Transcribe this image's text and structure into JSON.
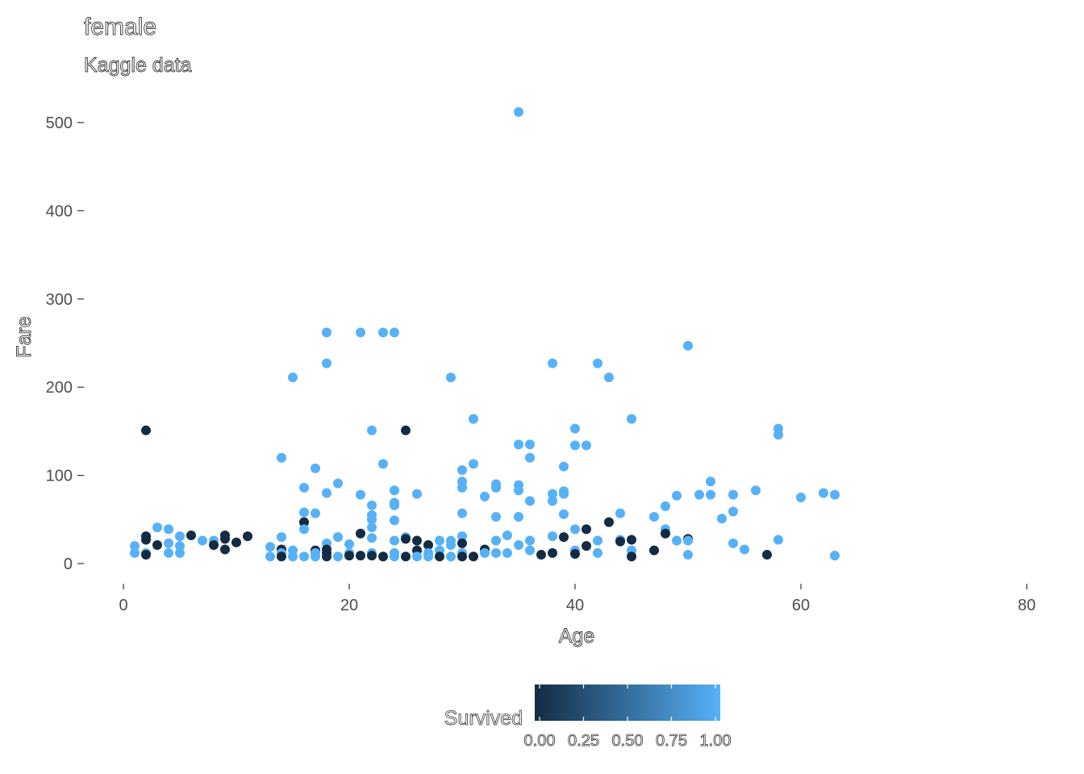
{
  "chart_data": {
    "type": "scatter",
    "title": "female",
    "subtitle": "Kaggle data",
    "xlabel": "Age",
    "ylabel": "Fare",
    "xlim": [
      0,
      80
    ],
    "ylim": [
      0,
      520
    ],
    "x_ticks": [
      "0",
      "20",
      "40",
      "60",
      "80"
    ],
    "x_tick_values": [
      0,
      20,
      40,
      60,
      80
    ],
    "y_ticks": [
      "0",
      "100",
      "200",
      "300",
      "400",
      "500"
    ],
    "y_tick_values": [
      0,
      100,
      200,
      300,
      400,
      500
    ],
    "grid": false,
    "legend": {
      "title": "Survived",
      "position": "bottom",
      "ticks": [
        "0.00",
        "0.25",
        "0.50",
        "0.75",
        "1.00"
      ],
      "tick_values": [
        0,
        0.25,
        0.5,
        0.75,
        1
      ],
      "color_low": "#132B43",
      "color_high": "#56B1F7"
    },
    "color_survived": "#56B1F7",
    "color_died": "#132B43",
    "points": [
      {
        "x": 35,
        "y": 512,
        "s": 1
      },
      {
        "x": 18,
        "y": 262,
        "s": 1
      },
      {
        "x": 21,
        "y": 262,
        "s": 1
      },
      {
        "x": 23,
        "y": 262,
        "s": 1
      },
      {
        "x": 24,
        "y": 262,
        "s": 1
      },
      {
        "x": 50,
        "y": 247,
        "s": 1
      },
      {
        "x": 18,
        "y": 227,
        "s": 1
      },
      {
        "x": 38,
        "y": 227,
        "s": 1
      },
      {
        "x": 42,
        "y": 227,
        "s": 1
      },
      {
        "x": 15,
        "y": 211,
        "s": 1
      },
      {
        "x": 29,
        "y": 211,
        "s": 1
      },
      {
        "x": 43,
        "y": 211,
        "s": 1
      },
      {
        "x": 31,
        "y": 164,
        "s": 1
      },
      {
        "x": 45,
        "y": 164,
        "s": 1
      },
      {
        "x": 2,
        "y": 151,
        "s": 0
      },
      {
        "x": 22,
        "y": 151,
        "s": 1
      },
      {
        "x": 25,
        "y": 151,
        "s": 0
      },
      {
        "x": 40,
        "y": 153,
        "s": 1
      },
      {
        "x": 58,
        "y": 153,
        "s": 1
      },
      {
        "x": 58,
        "y": 146,
        "s": 1
      },
      {
        "x": 35,
        "y": 135,
        "s": 1
      },
      {
        "x": 36,
        "y": 135,
        "s": 1
      },
      {
        "x": 40,
        "y": 134,
        "s": 1
      },
      {
        "x": 41,
        "y": 134,
        "s": 1
      },
      {
        "x": 14,
        "y": 120,
        "s": 1
      },
      {
        "x": 36,
        "y": 120,
        "s": 1
      },
      {
        "x": 23,
        "y": 113,
        "s": 1
      },
      {
        "x": 31,
        "y": 113,
        "s": 1
      },
      {
        "x": 17,
        "y": 108,
        "s": 1
      },
      {
        "x": 30,
        "y": 106,
        "s": 1
      },
      {
        "x": 39,
        "y": 110,
        "s": 1
      },
      {
        "x": 30,
        "y": 93,
        "s": 1
      },
      {
        "x": 52,
        "y": 93,
        "s": 1
      },
      {
        "x": 19,
        "y": 91,
        "s": 1
      },
      {
        "x": 33,
        "y": 90,
        "s": 1
      },
      {
        "x": 35,
        "y": 89,
        "s": 1
      },
      {
        "x": 16,
        "y": 86,
        "s": 1
      },
      {
        "x": 30,
        "y": 86,
        "s": 1
      },
      {
        "x": 33,
        "y": 86,
        "s": 1
      },
      {
        "x": 35,
        "y": 83,
        "s": 1
      },
      {
        "x": 24,
        "y": 83,
        "s": 1
      },
      {
        "x": 39,
        "y": 82,
        "s": 1
      },
      {
        "x": 56,
        "y": 83,
        "s": 1
      },
      {
        "x": 18,
        "y": 80,
        "s": 1
      },
      {
        "x": 26,
        "y": 79,
        "s": 1
      },
      {
        "x": 38,
        "y": 79,
        "s": 1
      },
      {
        "x": 39,
        "y": 79,
        "s": 1
      },
      {
        "x": 62,
        "y": 80,
        "s": 1
      },
      {
        "x": 63,
        "y": 78,
        "s": 1
      },
      {
        "x": 21,
        "y": 78,
        "s": 1
      },
      {
        "x": 49,
        "y": 77,
        "s": 1
      },
      {
        "x": 51,
        "y": 78,
        "s": 1
      },
      {
        "x": 52,
        "y": 78,
        "s": 1
      },
      {
        "x": 54,
        "y": 78,
        "s": 1
      },
      {
        "x": 32,
        "y": 76,
        "s": 1
      },
      {
        "x": 60,
        "y": 75,
        "s": 1
      },
      {
        "x": 38,
        "y": 71,
        "s": 1
      },
      {
        "x": 24,
        "y": 69,
        "s": 1
      },
      {
        "x": 36,
        "y": 71,
        "s": 1
      },
      {
        "x": 22,
        "y": 66,
        "s": 1
      },
      {
        "x": 24,
        "y": 66,
        "s": 1
      },
      {
        "x": 48,
        "y": 65,
        "s": 1
      },
      {
        "x": 54,
        "y": 59,
        "s": 1
      },
      {
        "x": 16,
        "y": 58,
        "s": 1
      },
      {
        "x": 17,
        "y": 57,
        "s": 1
      },
      {
        "x": 30,
        "y": 57,
        "s": 1
      },
      {
        "x": 39,
        "y": 56,
        "s": 1
      },
      {
        "x": 44,
        "y": 57,
        "s": 1
      },
      {
        "x": 22,
        "y": 55,
        "s": 1
      },
      {
        "x": 33,
        "y": 53,
        "s": 1
      },
      {
        "x": 35,
        "y": 53,
        "s": 1
      },
      {
        "x": 47,
        "y": 53,
        "s": 1
      },
      {
        "x": 53,
        "y": 51,
        "s": 1
      },
      {
        "x": 22,
        "y": 50,
        "s": 1
      },
      {
        "x": 24,
        "y": 49,
        "s": 1
      },
      {
        "x": 16,
        "y": 47,
        "s": 0
      },
      {
        "x": 43,
        "y": 47,
        "s": 0
      },
      {
        "x": 3,
        "y": 41,
        "s": 1
      },
      {
        "x": 22,
        "y": 41,
        "s": 1
      },
      {
        "x": 4,
        "y": 39,
        "s": 1
      },
      {
        "x": 16,
        "y": 39,
        "s": 1
      },
      {
        "x": 40,
        "y": 39,
        "s": 1
      },
      {
        "x": 41,
        "y": 39,
        "s": 0
      },
      {
        "x": 48,
        "y": 39,
        "s": 1
      },
      {
        "x": 48,
        "y": 34,
        "s": 0
      },
      {
        "x": 21,
        "y": 34,
        "s": 0
      },
      {
        "x": 34,
        "y": 32,
        "s": 1
      },
      {
        "x": 6,
        "y": 32,
        "s": 0
      },
      {
        "x": 9,
        "y": 32,
        "s": 0
      },
      {
        "x": 11,
        "y": 31,
        "s": 0
      },
      {
        "x": 2,
        "y": 31,
        "s": 0
      },
      {
        "x": 5,
        "y": 31,
        "s": 1
      },
      {
        "x": 14,
        "y": 30,
        "s": 1
      },
      {
        "x": 19,
        "y": 30,
        "s": 1
      },
      {
        "x": 25,
        "y": 30,
        "s": 1
      },
      {
        "x": 30,
        "y": 31,
        "s": 1
      },
      {
        "x": 38,
        "y": 31,
        "s": 1
      },
      {
        "x": 39,
        "y": 30,
        "s": 0
      },
      {
        "x": 22,
        "y": 29,
        "s": 1
      },
      {
        "x": 25,
        "y": 28,
        "s": 0
      },
      {
        "x": 50,
        "y": 28,
        "s": 0
      },
      {
        "x": 9,
        "y": 28,
        "s": 0
      },
      {
        "x": 44,
        "y": 27,
        "s": 1
      },
      {
        "x": 45,
        "y": 27,
        "s": 0
      },
      {
        "x": 2,
        "y": 27,
        "s": 0
      },
      {
        "x": 7,
        "y": 26,
        "s": 1
      },
      {
        "x": 8,
        "y": 26,
        "s": 1
      },
      {
        "x": 13,
        "y": 19,
        "s": 1
      },
      {
        "x": 24,
        "y": 26,
        "s": 1
      },
      {
        "x": 26,
        "y": 26,
        "s": 0
      },
      {
        "x": 28,
        "y": 26,
        "s": 1
      },
      {
        "x": 29,
        "y": 26,
        "s": 1
      },
      {
        "x": 33,
        "y": 26,
        "s": 1
      },
      {
        "x": 36,
        "y": 26,
        "s": 1
      },
      {
        "x": 42,
        "y": 26,
        "s": 1
      },
      {
        "x": 49,
        "y": 26,
        "s": 1
      },
      {
        "x": 50,
        "y": 26,
        "s": 1
      },
      {
        "x": 58,
        "y": 27,
        "s": 1
      },
      {
        "x": 44,
        "y": 25,
        "s": 0
      },
      {
        "x": 10,
        "y": 24,
        "s": 0
      },
      {
        "x": 4,
        "y": 23,
        "s": 1
      },
      {
        "x": 18,
        "y": 23,
        "s": 1
      },
      {
        "x": 20,
        "y": 22,
        "s": 1
      },
      {
        "x": 30,
        "y": 23,
        "s": 0
      },
      {
        "x": 54,
        "y": 23,
        "s": 1
      },
      {
        "x": 3,
        "y": 21,
        "s": 0
      },
      {
        "x": 8,
        "y": 21,
        "s": 0
      },
      {
        "x": 27,
        "y": 21,
        "s": 0
      },
      {
        "x": 29,
        "y": 21,
        "s": 1
      },
      {
        "x": 35,
        "y": 21,
        "s": 1
      },
      {
        "x": 41,
        "y": 20,
        "s": 0
      },
      {
        "x": 1,
        "y": 20,
        "s": 1
      },
      {
        "x": 5,
        "y": 20,
        "s": 1
      },
      {
        "x": 40,
        "y": 15,
        "s": 1
      },
      {
        "x": 9,
        "y": 16,
        "s": 0
      },
      {
        "x": 14,
        "y": 16,
        "s": 0
      },
      {
        "x": 17,
        "y": 15,
        "s": 0
      },
      {
        "x": 18,
        "y": 16,
        "s": 0
      },
      {
        "x": 15,
        "y": 15,
        "s": 1
      },
      {
        "x": 26,
        "y": 15,
        "s": 0
      },
      {
        "x": 28,
        "y": 15,
        "s": 1
      },
      {
        "x": 32,
        "y": 16,
        "s": 0
      },
      {
        "x": 36,
        "y": 15,
        "s": 1
      },
      {
        "x": 45,
        "y": 15,
        "s": 1
      },
      {
        "x": 47,
        "y": 15,
        "s": 0
      },
      {
        "x": 55,
        "y": 16,
        "s": 1
      },
      {
        "x": 2,
        "y": 12,
        "s": 1
      },
      {
        "x": 4,
        "y": 12,
        "s": 1
      },
      {
        "x": 5,
        "y": 12,
        "s": 1
      },
      {
        "x": 14,
        "y": 12,
        "s": 1
      },
      {
        "x": 17,
        "y": 12,
        "s": 1
      },
      {
        "x": 18,
        "y": 12,
        "s": 0
      },
      {
        "x": 20,
        "y": 12,
        "s": 1
      },
      {
        "x": 22,
        "y": 12,
        "s": 1
      },
      {
        "x": 24,
        "y": 12,
        "s": 1
      },
      {
        "x": 27,
        "y": 12,
        "s": 1
      },
      {
        "x": 30,
        "y": 12,
        "s": 1
      },
      {
        "x": 32,
        "y": 12,
        "s": 1
      },
      {
        "x": 33,
        "y": 12,
        "s": 1
      },
      {
        "x": 34,
        "y": 12,
        "s": 1
      },
      {
        "x": 38,
        "y": 12,
        "s": 0
      },
      {
        "x": 40,
        "y": 11,
        "s": 0
      },
      {
        "x": 42,
        "y": 12,
        "s": 1
      },
      {
        "x": 57,
        "y": 10,
        "s": 0
      },
      {
        "x": 1,
        "y": 12,
        "s": 1
      },
      {
        "x": 2,
        "y": 10,
        "s": 0
      },
      {
        "x": 50,
        "y": 10,
        "s": 1
      },
      {
        "x": 13,
        "y": 8,
        "s": 1
      },
      {
        "x": 14,
        "y": 8,
        "s": 0
      },
      {
        "x": 15,
        "y": 8,
        "s": 1
      },
      {
        "x": 16,
        "y": 8,
        "s": 1
      },
      {
        "x": 17,
        "y": 8,
        "s": 1
      },
      {
        "x": 18,
        "y": 8,
        "s": 0
      },
      {
        "x": 19,
        "y": 8,
        "s": 1
      },
      {
        "x": 20,
        "y": 9,
        "s": 0
      },
      {
        "x": 21,
        "y": 9,
        "s": 0
      },
      {
        "x": 22,
        "y": 9,
        "s": 0
      },
      {
        "x": 23,
        "y": 8,
        "s": 0
      },
      {
        "x": 24,
        "y": 8,
        "s": 1
      },
      {
        "x": 25,
        "y": 8,
        "s": 0
      },
      {
        "x": 26,
        "y": 8,
        "s": 1
      },
      {
        "x": 27,
        "y": 8,
        "s": 1
      },
      {
        "x": 28,
        "y": 8,
        "s": 0
      },
      {
        "x": 29,
        "y": 8,
        "s": 1
      },
      {
        "x": 30,
        "y": 8,
        "s": 0
      },
      {
        "x": 31,
        "y": 8,
        "s": 0
      },
      {
        "x": 37,
        "y": 10,
        "s": 0
      },
      {
        "x": 45,
        "y": 8,
        "s": 0
      },
      {
        "x": 63,
        "y": 9,
        "s": 1
      }
    ]
  }
}
